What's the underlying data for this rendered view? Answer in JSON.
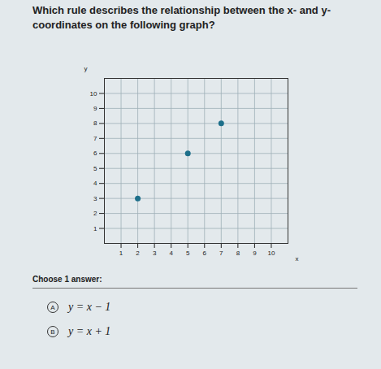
{
  "question": "Which rule describes the relationship between the x- and y- coordinates on the following graph?",
  "chart_data": {
    "type": "scatter",
    "x_label": "x",
    "y_label": "y",
    "x": [
      2,
      5,
      7
    ],
    "values": [
      3,
      6,
      8
    ],
    "color": "#1d6f8a",
    "xlim": [
      0,
      11
    ],
    "ylim": [
      0,
      11
    ],
    "xticks": [
      1,
      2,
      3,
      4,
      5,
      6,
      7,
      8,
      9,
      10
    ],
    "yticks": [
      1,
      2,
      3,
      4,
      5,
      6,
      7,
      8,
      9,
      10
    ],
    "grid": true
  },
  "prompt": "Choose 1 answer:",
  "choices": [
    {
      "letter": "A",
      "text": "y = x − 1"
    },
    {
      "letter": "B",
      "text": "y = x + 1"
    }
  ]
}
